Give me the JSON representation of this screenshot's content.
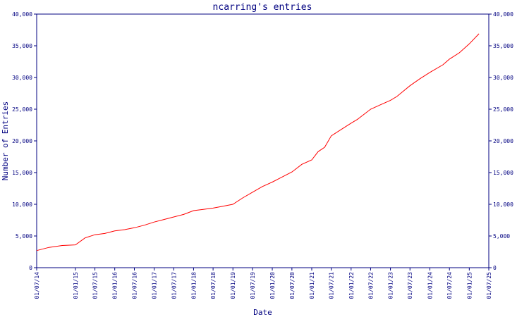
{
  "chart_data": {
    "type": "line",
    "title": "ncarring's entries",
    "xlabel": "Date",
    "ylabel": "Number of Entries",
    "xlim": [
      "2014-01-07",
      "2025-07-01"
    ],
    "ylim": [
      0,
      40000
    ],
    "grid": false,
    "legend": "none",
    "colors": {
      "axis": "#000080",
      "series": "#ff0000",
      "background": "#ffffff"
    },
    "x_tick_labels": [
      "01/07/14",
      "01/01/15",
      "01/07/15",
      "01/01/16",
      "01/07/16",
      "01/01/17",
      "01/07/17",
      "01/01/18",
      "01/07/18",
      "01/01/19",
      "01/07/19",
      "01/01/20",
      "01/07/20",
      "01/01/21",
      "01/07/21",
      "01/01/22",
      "01/07/22",
      "01/01/23",
      "01/07/23",
      "01/01/24",
      "01/07/24",
      "01/01/25",
      "01/07/25"
    ],
    "x_ticks": [
      "2014-01-07",
      "2015-01-01",
      "2015-07-01",
      "2016-01-01",
      "2016-07-01",
      "2017-01-01",
      "2017-07-01",
      "2018-01-01",
      "2018-07-01",
      "2019-01-01",
      "2019-07-01",
      "2020-01-01",
      "2020-07-01",
      "2021-01-01",
      "2021-07-01",
      "2022-01-01",
      "2022-07-01",
      "2023-01-01",
      "2023-07-01",
      "2024-01-01",
      "2024-07-01",
      "2025-01-01",
      "2025-07-01"
    ],
    "y_ticks": [
      0,
      5000,
      10000,
      15000,
      20000,
      25000,
      30000,
      35000,
      40000
    ],
    "y_tick_labels": [
      "0",
      "5,000",
      "10,000",
      "15,000",
      "20,000",
      "25,000",
      "30,000",
      "35,000",
      "40,000"
    ],
    "series": [
      {
        "x": [
          "2014-01-07",
          "2014-05-01",
          "2014-09-01",
          "2015-01-01",
          "2015-04-01",
          "2015-07-01",
          "2015-10-01",
          "2016-01-01",
          "2016-04-01",
          "2016-07-01",
          "2016-10-01",
          "2017-01-01",
          "2017-04-01",
          "2017-07-01",
          "2017-10-01",
          "2018-01-01",
          "2018-04-01",
          "2018-07-01",
          "2018-10-01",
          "2019-01-01",
          "2019-04-01",
          "2019-07-01",
          "2019-10-01",
          "2020-01-01",
          "2020-04-01",
          "2020-07-01",
          "2020-10-01",
          "2021-01-01",
          "2021-03-01",
          "2021-05-01",
          "2021-07-01",
          "2021-10-01",
          "2022-01-01",
          "2022-03-01",
          "2022-07-01",
          "2022-10-01",
          "2023-01-01",
          "2023-03-01",
          "2023-07-01",
          "2023-10-01",
          "2024-01-01",
          "2024-05-01",
          "2024-07-01",
          "2024-10-01",
          "2025-01-01",
          "2025-04-01"
        ],
        "y": [
          2700,
          3200,
          3500,
          3600,
          4700,
          5200,
          5400,
          5800,
          6000,
          6300,
          6700,
          7200,
          7600,
          8000,
          8400,
          9000,
          9200,
          9400,
          9700,
          10000,
          11000,
          11900,
          12800,
          13500,
          14300,
          15100,
          16300,
          17000,
          18300,
          19000,
          20800,
          21800,
          22800,
          23400,
          25000,
          25700,
          26400,
          27000,
          28700,
          29800,
          30800,
          32000,
          32900,
          33900,
          35300,
          36900
        ]
      }
    ]
  }
}
